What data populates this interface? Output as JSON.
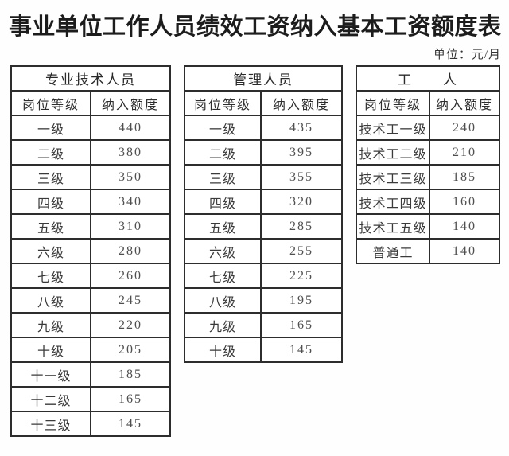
{
  "page": {
    "title": "事业单位工作人员绩效工资纳入基本工资额度表",
    "unit_label": "单位：元/月"
  },
  "tables": [
    {
      "group_header": "专业技术人员",
      "columns": [
        "岗位等级",
        "纳入额度"
      ],
      "rows": [
        [
          "一级",
          "440"
        ],
        [
          "二级",
          "380"
        ],
        [
          "三级",
          "350"
        ],
        [
          "四级",
          "340"
        ],
        [
          "五级",
          "310"
        ],
        [
          "六级",
          "280"
        ],
        [
          "七级",
          "260"
        ],
        [
          "八级",
          "245"
        ],
        [
          "九级",
          "220"
        ],
        [
          "十级",
          "205"
        ],
        [
          "十一级",
          "185"
        ],
        [
          "十二级",
          "165"
        ],
        [
          "十三级",
          "145"
        ]
      ]
    },
    {
      "group_header": "管理人员",
      "columns": [
        "岗位等级",
        "纳入额度"
      ],
      "rows": [
        [
          "一级",
          "435"
        ],
        [
          "二级",
          "395"
        ],
        [
          "三级",
          "355"
        ],
        [
          "四级",
          "320"
        ],
        [
          "五级",
          "285"
        ],
        [
          "六级",
          "255"
        ],
        [
          "七级",
          "225"
        ],
        [
          "八级",
          "195"
        ],
        [
          "九级",
          "165"
        ],
        [
          "十级",
          "145"
        ]
      ]
    },
    {
      "group_header": "工　　人",
      "columns": [
        "岗位等级",
        "纳入额度"
      ],
      "rows": [
        [
          "技术工一级",
          "240"
        ],
        [
          "技术工二级",
          "210"
        ],
        [
          "技术工三级",
          "185"
        ],
        [
          "技术工四级",
          "160"
        ],
        [
          "技术工五级",
          "140"
        ],
        [
          "普通工",
          "140"
        ]
      ]
    }
  ]
}
